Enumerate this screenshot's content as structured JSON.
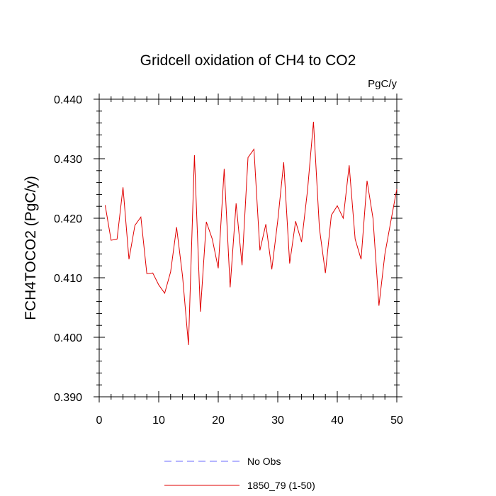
{
  "chart_data": {
    "type": "line",
    "title": "Gridcell oxidation of CH4 to CO2",
    "units": "PgC/y",
    "ylabel": "FCH4TOCO2  (PgC/y)",
    "xlabel": "",
    "xlim": [
      0,
      50
    ],
    "ylim": [
      0.39,
      0.44
    ],
    "x_ticks": [
      0,
      10,
      20,
      30,
      40,
      50
    ],
    "y_ticks": [
      0.39,
      0.4,
      0.41,
      0.42,
      0.43,
      0.44
    ],
    "x_tick_labels": [
      "0",
      "10",
      "20",
      "30",
      "40",
      "50"
    ],
    "y_tick_labels": [
      "0.390",
      "0.400",
      "0.410",
      "0.420",
      "0.430",
      "0.440"
    ],
    "grid": false,
    "legend_position": "bottom",
    "series": [
      {
        "name": "No Obs",
        "color": "#6b6bff",
        "style": "dashed",
        "x": [],
        "values": []
      },
      {
        "name": "1850_79 (1-50)",
        "color": "#e00000",
        "style": "solid",
        "x": [
          1,
          2,
          3,
          4,
          5,
          6,
          7,
          8,
          9,
          10,
          11,
          12,
          13,
          14,
          15,
          16,
          17,
          18,
          19,
          20,
          21,
          22,
          23,
          24,
          25,
          26,
          27,
          28,
          29,
          30,
          31,
          32,
          33,
          34,
          35,
          36,
          37,
          38,
          39,
          40,
          41,
          42,
          43,
          44,
          45,
          46,
          47,
          48,
          49,
          50
        ],
        "values": [
          0.4222,
          0.4163,
          0.4165,
          0.4252,
          0.4131,
          0.4188,
          0.4202,
          0.4107,
          0.4108,
          0.4088,
          0.4074,
          0.411,
          0.4185,
          0.4103,
          0.3987,
          0.4306,
          0.4043,
          0.4194,
          0.4165,
          0.4116,
          0.4283,
          0.4084,
          0.4225,
          0.4121,
          0.4302,
          0.4316,
          0.4146,
          0.419,
          0.4114,
          0.4196,
          0.4294,
          0.4124,
          0.4195,
          0.416,
          0.4247,
          0.4362,
          0.4183,
          0.4108,
          0.4205,
          0.4221,
          0.42,
          0.4289,
          0.4165,
          0.4131,
          0.4263,
          0.42,
          0.4053,
          0.414,
          0.4195,
          0.4249
        ]
      }
    ]
  }
}
